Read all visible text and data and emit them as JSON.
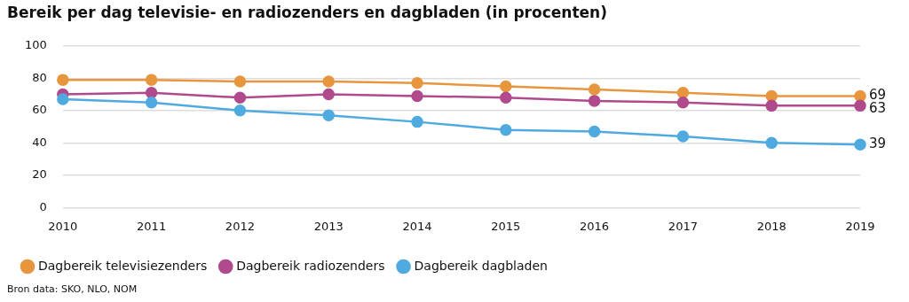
{
  "chart_data": {
    "type": "line",
    "title": "Bereik per dag televisie- en radiozenders en dagbladen (in procenten)",
    "categories": [
      "2010",
      "2011",
      "2012",
      "2013",
      "2014",
      "2015",
      "2016",
      "2017",
      "2018",
      "2019"
    ],
    "series": [
      {
        "name": "Dagbereik televisiezenders",
        "color": "#e8963e",
        "values": [
          79,
          79,
          78,
          78,
          77,
          75,
          73,
          71,
          69,
          69
        ],
        "value_labels": [
          null,
          null,
          null,
          null,
          null,
          null,
          null,
          null,
          null,
          "69"
        ]
      },
      {
        "name": "Dagbereik radiozenders",
        "color": "#b04a8c",
        "values": [
          70,
          71,
          68,
          70,
          69,
          68,
          66,
          65,
          63,
          63
        ],
        "value_labels": [
          null,
          null,
          null,
          null,
          null,
          null,
          null,
          null,
          null,
          "63"
        ]
      },
      {
        "name": "Dagbereik dagbladen",
        "color": "#4eaadf",
        "values": [
          67,
          65,
          60,
          57,
          53,
          48,
          47,
          44,
          40,
          39
        ],
        "value_labels": [
          null,
          null,
          null,
          null,
          null,
          null,
          null,
          null,
          null,
          "39"
        ]
      }
    ],
    "ylim": [
      0,
      100
    ],
    "yticks": [
      0,
      20,
      40,
      60,
      80,
      100
    ],
    "grid": "y",
    "legend": "bottom",
    "marker": "circle",
    "line_style": "solid",
    "annotations": [
      "Bron data: SKO, NLO, NOM"
    ]
  }
}
